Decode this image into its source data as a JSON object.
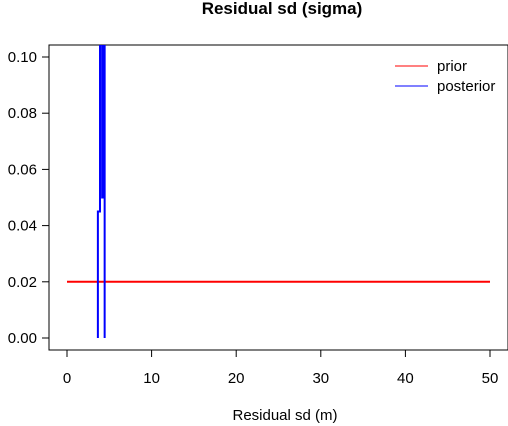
{
  "chart_data": {
    "type": "line",
    "title": "Residual sd (sigma)",
    "xlabel": "Residual sd (m)",
    "ylabel": "",
    "xlim": [
      0,
      50
    ],
    "ylim": [
      0,
      0.1
    ],
    "x_ticks": [
      0,
      10,
      20,
      30,
      40,
      50
    ],
    "x_tick_labels": [
      "0",
      "10",
      "20",
      "30",
      "40",
      "50"
    ],
    "y_ticks": [
      0,
      0.02,
      0.04,
      0.06,
      0.08,
      0.1
    ],
    "y_tick_labels": [
      "0.00",
      "0.02",
      "0.04",
      "0.06",
      "0.08",
      "0.10"
    ],
    "grid": false,
    "legend_position": "top-right",
    "series": [
      {
        "name": "prior",
        "color": "#ff0000",
        "x": [
          0,
          50
        ],
        "y": [
          0.02,
          0.02
        ]
      },
      {
        "name": "posterior",
        "color": "#0000ff",
        "x": [
          3.65,
          3.65,
          3.9,
          3.9,
          4.15,
          4.15,
          4.35,
          4.35,
          4.45,
          4.45
        ],
        "y": [
          0,
          0.045,
          0.045,
          0.14,
          0.14,
          0.05,
          0.05,
          0.14,
          0.14,
          0
        ]
      }
    ]
  }
}
